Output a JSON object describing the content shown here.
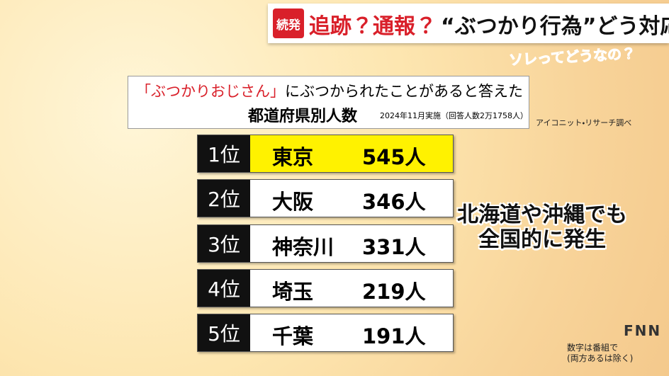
{
  "header": {
    "badge": "続発",
    "title_red": "追跡？通報？",
    "title_black": "“ぶつかり行為”どう対応",
    "corner": "ソレってどうなの？"
  },
  "table_title": {
    "highlight": "「ぶつかりおじさん」",
    "line1": "にぶつかられたことがあると答えた",
    "line2": "都道府県別人数",
    "note": "2024年11月実施（回答人数2万1758人）"
  },
  "source": "アイコニット・リサーチ調べ",
  "table": {
    "rows": [
      [
        "1位",
        "東京",
        "545人"
      ],
      [
        "2位",
        "大阪",
        "346人"
      ],
      [
        "3位",
        "神奈川",
        "331人"
      ],
      [
        "4位",
        "埼玉",
        "219人"
      ],
      [
        "5位",
        "千葉",
        "191人"
      ]
    ]
  },
  "caption": [
    "北海道や沖縄でも",
    "全国的に発生"
  ],
  "footnote": [
    "数字は番組で",
    "(両方あるは除く)"
  ],
  "logo": "FNN"
}
